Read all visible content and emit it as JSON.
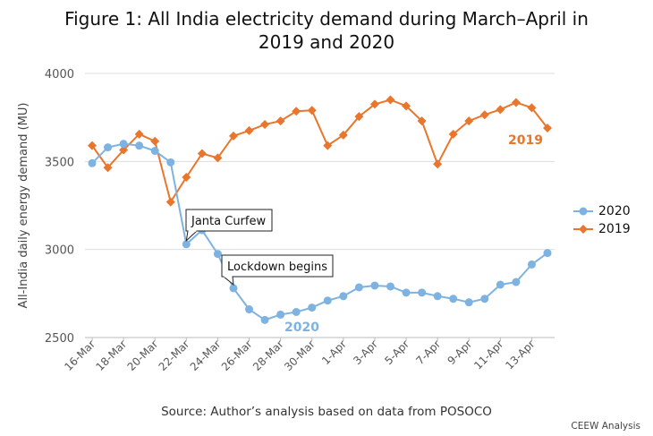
{
  "title": {
    "line1": "Figure 1: All India electricity demand during March–April in",
    "line2": "2019 and 2020"
  },
  "source": "Source: Author’s analysis based on data from POSOCO",
  "credit": "CEEW Analysis",
  "colors": {
    "s2020": "#7eb3e1",
    "s2019": "#e8762c",
    "grid": "#dddddd",
    "axis": "#bbbbbb"
  },
  "chart_data": {
    "type": "line",
    "ylabel": "All-India daily energy demand (MU)",
    "xlabel": "",
    "ylim": [
      2500,
      4000
    ],
    "yticks": [
      2500,
      3000,
      3500,
      4000
    ],
    "grid": true,
    "legend_position": "right",
    "x_tick_labels": [
      "16-Mar",
      "18-Mar",
      "20-Mar",
      "22-Mar",
      "24-Mar",
      "26-Mar",
      "28-Mar",
      "30-Mar",
      "1-Apr",
      "3-Apr",
      "5-Apr",
      "7-Apr",
      "9-Apr",
      "11-Apr",
      "13-Apr"
    ],
    "series": [
      {
        "name": "2020",
        "marker": "circle",
        "x": [
          "16-Mar",
          "17-Mar",
          "18-Mar",
          "19-Mar",
          "20-Mar",
          "21-Mar",
          "22-Mar",
          "23-Mar",
          "24-Mar",
          "25-Mar",
          "26-Mar",
          "27-Mar",
          "28-Mar",
          "29-Mar",
          "30-Mar",
          "31-Mar",
          "1-Apr",
          "2-Apr",
          "3-Apr",
          "4-Apr",
          "5-Apr",
          "6-Apr",
          "7-Apr",
          "8-Apr",
          "9-Apr",
          "10-Apr",
          "11-Apr",
          "12-Apr",
          "13-Apr",
          "14-Apr"
        ],
        "values": [
          3490,
          3580,
          3600,
          3590,
          3560,
          3495,
          3030,
          3110,
          2975,
          2780,
          2660,
          2600,
          2630,
          2645,
          2670,
          2710,
          2735,
          2785,
          2795,
          2790,
          2755,
          2755,
          2735,
          2720,
          2700,
          2720,
          2800,
          2815,
          2915,
          2980
        ],
        "end_label": "2020"
      },
      {
        "name": "2019",
        "marker": "diamond",
        "x": [
          "16-Mar",
          "17-Mar",
          "18-Mar",
          "19-Mar",
          "20-Mar",
          "21-Mar",
          "22-Mar",
          "23-Mar",
          "24-Mar",
          "25-Mar",
          "26-Mar",
          "27-Mar",
          "28-Mar",
          "29-Mar",
          "30-Mar",
          "31-Mar",
          "1-Apr",
          "2-Apr",
          "3-Apr",
          "4-Apr",
          "5-Apr",
          "6-Apr",
          "7-Apr",
          "8-Apr",
          "9-Apr",
          "10-Apr",
          "11-Apr",
          "12-Apr",
          "13-Apr",
          "14-Apr"
        ],
        "values": [
          3590,
          3465,
          3565,
          3655,
          3615,
          3270,
          3410,
          3545,
          3520,
          3645,
          3675,
          3710,
          3730,
          3785,
          3790,
          3590,
          3650,
          3755,
          3825,
          3850,
          3815,
          3730,
          3485,
          3655,
          3730,
          3765,
          3795,
          3835,
          3805,
          3690
        ],
        "end_label": "2019"
      }
    ],
    "annotations": [
      {
        "text": "Janta Curfew",
        "x": "22-Mar",
        "series": "2020"
      },
      {
        "text": "Lockdown begins",
        "x": "25-Mar",
        "series": "2020"
      }
    ]
  }
}
